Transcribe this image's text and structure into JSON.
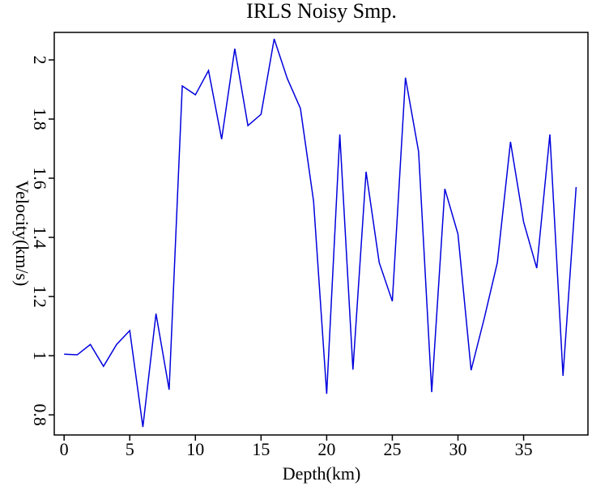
{
  "chart_data": {
    "type": "line",
    "title": "IRLS Noisy Smp.",
    "x_label": "Depth(km)",
    "y_label": "Velocity(km/s)",
    "x": [
      0,
      1,
      2,
      3,
      4,
      5,
      6,
      7,
      8,
      9,
      10,
      11,
      12,
      13,
      14,
      15,
      16,
      17,
      18,
      19,
      20,
      21,
      22,
      23,
      24,
      25,
      26,
      27,
      28,
      29,
      30,
      31,
      32,
      33,
      34,
      35,
      36,
      37,
      38,
      39
    ],
    "series": [
      {
        "color": "#0000dd",
        "values": [
          1.005,
          1.003,
          1.038,
          0.964,
          1.038,
          1.085,
          0.759,
          1.142,
          0.885,
          1.912,
          1.882,
          1.964,
          1.732,
          2.038,
          1.778,
          1.816,
          2.071,
          1.937,
          1.836,
          1.523,
          0.871,
          1.748,
          0.953,
          1.622,
          1.315,
          1.184,
          1.94,
          1.69,
          0.877,
          1.564,
          1.411,
          0.951,
          1.126,
          1.315,
          1.723,
          1.452,
          1.296,
          1.748,
          0.932,
          1.57
        ]
      }
    ],
    "xlim": [
      -0.75,
      39.9
    ],
    "xticks": [
      0,
      5,
      10,
      15,
      20,
      25,
      30,
      35
    ],
    "ylim": [
      0.732,
      2.093
    ],
    "yticks": [
      0.8,
      1,
      1.2,
      1.4,
      1.6,
      1.8,
      2
    ]
  }
}
